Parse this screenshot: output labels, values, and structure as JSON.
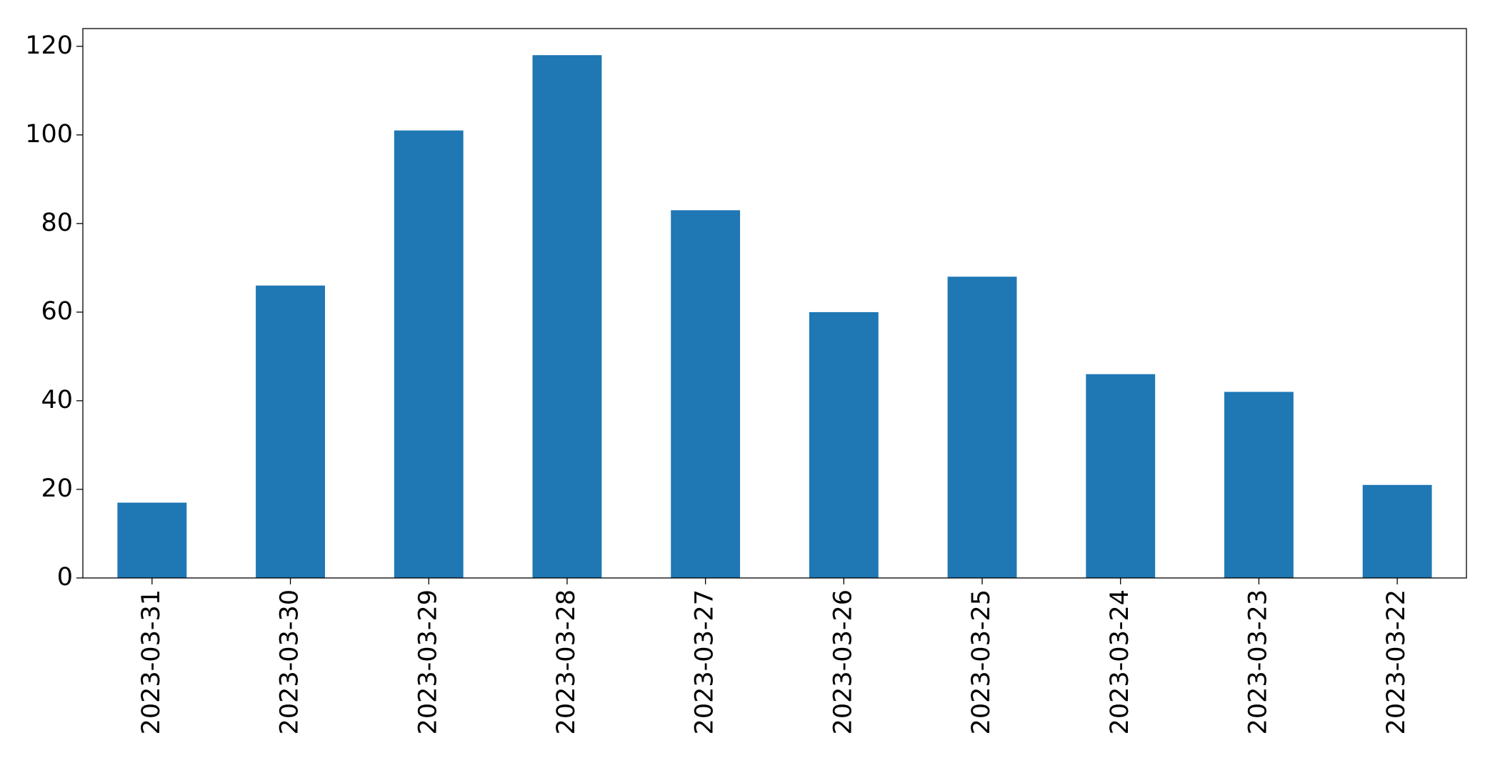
{
  "chart_data": {
    "type": "bar",
    "categories": [
      "2023-03-31",
      "2023-03-30",
      "2023-03-29",
      "2023-03-28",
      "2023-03-27",
      "2023-03-26",
      "2023-03-25",
      "2023-03-24",
      "2023-03-23",
      "2023-03-22"
    ],
    "values": [
      17,
      66,
      101,
      118,
      83,
      60,
      68,
      46,
      42,
      21
    ],
    "color": "#1f77b4",
    "ylim": [
      0,
      124
    ],
    "yticks": [
      0,
      20,
      40,
      60,
      80,
      100,
      120
    ],
    "grid": false
  }
}
